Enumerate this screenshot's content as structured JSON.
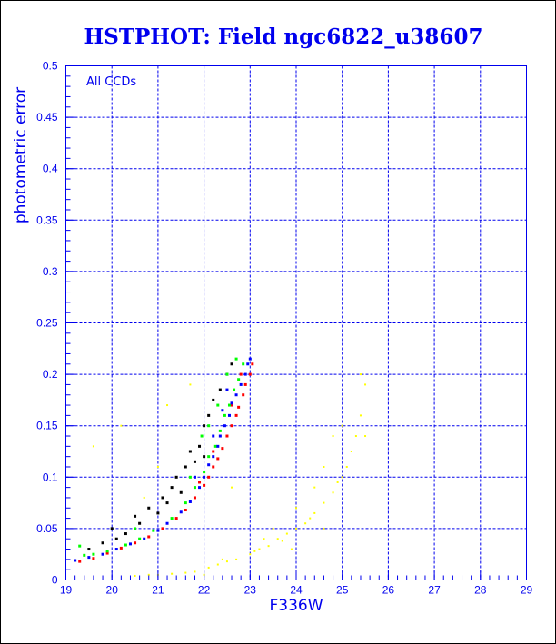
{
  "chart_data": {
    "type": "scatter",
    "title": "HSTPHOT: Field ngc6822_u38607",
    "xlabel": "F336W",
    "ylabel": "photometric error",
    "annotation": "All CCDs",
    "xlim": [
      19,
      29
    ],
    "ylim": [
      0,
      0.5
    ],
    "grid": true,
    "x_ticks": [
      "19",
      "20",
      "21",
      "22",
      "23",
      "24",
      "25",
      "26",
      "27",
      "28",
      "29"
    ],
    "y_ticks": [
      "0",
      "0.05",
      "0.1",
      "0.15",
      "0.2",
      "0.25",
      "0.3",
      "0.35",
      "0.4",
      "0.45",
      "0.5"
    ],
    "series": [
      {
        "name": "yellow",
        "color": "#ffff00",
        "points": [
          [
            20.5,
            0.004
          ],
          [
            20.8,
            0.005
          ],
          [
            21.0,
            0.005
          ],
          [
            21.3,
            0.006
          ],
          [
            21.6,
            0.007
          ],
          [
            21.8,
            0.008
          ],
          [
            22.1,
            0.012
          ],
          [
            22.3,
            0.015
          ],
          [
            22.5,
            0.018
          ],
          [
            22.7,
            0.02
          ],
          [
            23.0,
            0.025
          ],
          [
            23.2,
            0.03
          ],
          [
            23.4,
            0.033
          ],
          [
            23.6,
            0.04
          ],
          [
            23.8,
            0.045
          ],
          [
            24.0,
            0.05
          ],
          [
            24.2,
            0.055
          ],
          [
            24.4,
            0.065
          ],
          [
            24.6,
            0.075
          ],
          [
            24.8,
            0.085
          ],
          [
            25.0,
            0.1
          ],
          [
            25.1,
            0.11
          ],
          [
            25.2,
            0.125
          ],
          [
            25.3,
            0.14
          ],
          [
            25.4,
            0.16
          ],
          [
            25.5,
            0.19
          ],
          [
            25.4,
            0.2
          ],
          [
            23.5,
            0.05
          ],
          [
            24.0,
            0.07
          ],
          [
            24.6,
            0.05
          ],
          [
            25.0,
            0.15
          ],
          [
            24.8,
            0.14
          ],
          [
            23.3,
            0.04
          ],
          [
            22.0,
            0.005
          ],
          [
            19.6,
            0.13
          ],
          [
            20.2,
            0.15
          ],
          [
            21.7,
            0.19
          ],
          [
            21.0,
            0.11
          ],
          [
            20.7,
            0.08
          ],
          [
            21.2,
            0.17
          ],
          [
            24.6,
            0.11
          ],
          [
            25.5,
            0.14
          ],
          [
            23.9,
            0.03
          ],
          [
            24.4,
            0.09
          ],
          [
            22.6,
            0.09
          ],
          [
            22.4,
            0.02
          ],
          [
            23.1,
            0.028
          ],
          [
            23.7,
            0.038
          ],
          [
            24.3,
            0.06
          ],
          [
            24.9,
            0.095
          ]
        ]
      },
      {
        "name": "black",
        "color": "#000000",
        "points": [
          [
            19.5,
            0.03
          ],
          [
            19.8,
            0.036
          ],
          [
            20.0,
            0.05
          ],
          [
            20.3,
            0.045
          ],
          [
            20.5,
            0.062
          ],
          [
            20.6,
            0.055
          ],
          [
            20.8,
            0.07
          ],
          [
            21.0,
            0.065
          ],
          [
            21.1,
            0.08
          ],
          [
            21.3,
            0.09
          ],
          [
            21.4,
            0.1
          ],
          [
            21.5,
            0.085
          ],
          [
            21.6,
            0.11
          ],
          [
            21.8,
            0.115
          ],
          [
            21.9,
            0.13
          ],
          [
            22.0,
            0.15
          ],
          [
            22.1,
            0.16
          ],
          [
            22.2,
            0.175
          ],
          [
            22.35,
            0.185
          ],
          [
            22.5,
            0.2
          ],
          [
            22.6,
            0.21
          ],
          [
            21.7,
            0.125
          ],
          [
            21.2,
            0.075
          ],
          [
            20.1,
            0.04
          ],
          [
            22.0,
            0.12
          ]
        ]
      },
      {
        "name": "red",
        "color": "#ff0000",
        "points": [
          [
            19.3,
            0.018
          ],
          [
            19.6,
            0.021
          ],
          [
            19.9,
            0.026
          ],
          [
            20.2,
            0.031
          ],
          [
            20.5,
            0.036
          ],
          [
            20.8,
            0.042
          ],
          [
            21.1,
            0.05
          ],
          [
            21.4,
            0.06
          ],
          [
            21.6,
            0.068
          ],
          [
            21.8,
            0.08
          ],
          [
            22.0,
            0.092
          ],
          [
            22.1,
            0.1
          ],
          [
            22.2,
            0.11
          ],
          [
            22.3,
            0.118
          ],
          [
            22.4,
            0.128
          ],
          [
            22.5,
            0.14
          ],
          [
            22.6,
            0.15
          ],
          [
            22.7,
            0.16
          ],
          [
            22.75,
            0.168
          ],
          [
            22.85,
            0.18
          ],
          [
            22.9,
            0.19
          ],
          [
            23.0,
            0.2
          ],
          [
            23.05,
            0.21
          ],
          [
            22.2,
            0.125
          ],
          [
            21.9,
            0.095
          ],
          [
            22.6,
            0.17
          ],
          [
            22.8,
            0.2
          ]
        ]
      },
      {
        "name": "green",
        "color": "#00ff00",
        "points": [
          [
            19.4,
            0.024
          ],
          [
            19.6,
            0.025
          ],
          [
            19.9,
            0.028
          ],
          [
            20.3,
            0.034
          ],
          [
            20.6,
            0.04
          ],
          [
            20.9,
            0.048
          ],
          [
            21.3,
            0.06
          ],
          [
            21.6,
            0.075
          ],
          [
            21.8,
            0.09
          ],
          [
            22.0,
            0.105
          ],
          [
            22.1,
            0.12
          ],
          [
            22.25,
            0.13
          ],
          [
            22.35,
            0.145
          ],
          [
            22.45,
            0.16
          ],
          [
            22.55,
            0.17
          ],
          [
            22.65,
            0.185
          ],
          [
            22.75,
            0.195
          ],
          [
            22.85,
            0.21
          ],
          [
            22.7,
            0.215
          ],
          [
            21.95,
            0.14
          ],
          [
            22.1,
            0.15
          ],
          [
            22.3,
            0.17
          ],
          [
            21.7,
            0.1
          ],
          [
            22.5,
            0.2
          ],
          [
            19.3,
            0.033
          ],
          [
            20.5,
            0.05
          ]
        ]
      },
      {
        "name": "blue",
        "color": "#0000ff",
        "points": [
          [
            19.2,
            0.019
          ],
          [
            19.5,
            0.022
          ],
          [
            19.8,
            0.025
          ],
          [
            20.1,
            0.03
          ],
          [
            20.4,
            0.035
          ],
          [
            20.7,
            0.04
          ],
          [
            21.0,
            0.048
          ],
          [
            21.2,
            0.055
          ],
          [
            21.5,
            0.066
          ],
          [
            21.7,
            0.076
          ],
          [
            21.9,
            0.09
          ],
          [
            22.0,
            0.1
          ],
          [
            22.1,
            0.112
          ],
          [
            22.2,
            0.12
          ],
          [
            22.3,
            0.13
          ],
          [
            22.35,
            0.14
          ],
          [
            22.45,
            0.15
          ],
          [
            22.55,
            0.16
          ],
          [
            22.6,
            0.172
          ],
          [
            22.7,
            0.18
          ],
          [
            22.8,
            0.19
          ],
          [
            22.9,
            0.2
          ],
          [
            22.95,
            0.21
          ],
          [
            23.0,
            0.215
          ],
          [
            22.2,
            0.14
          ],
          [
            22.5,
            0.185
          ],
          [
            21.8,
            0.1
          ],
          [
            22.4,
            0.165
          ]
        ]
      }
    ]
  }
}
